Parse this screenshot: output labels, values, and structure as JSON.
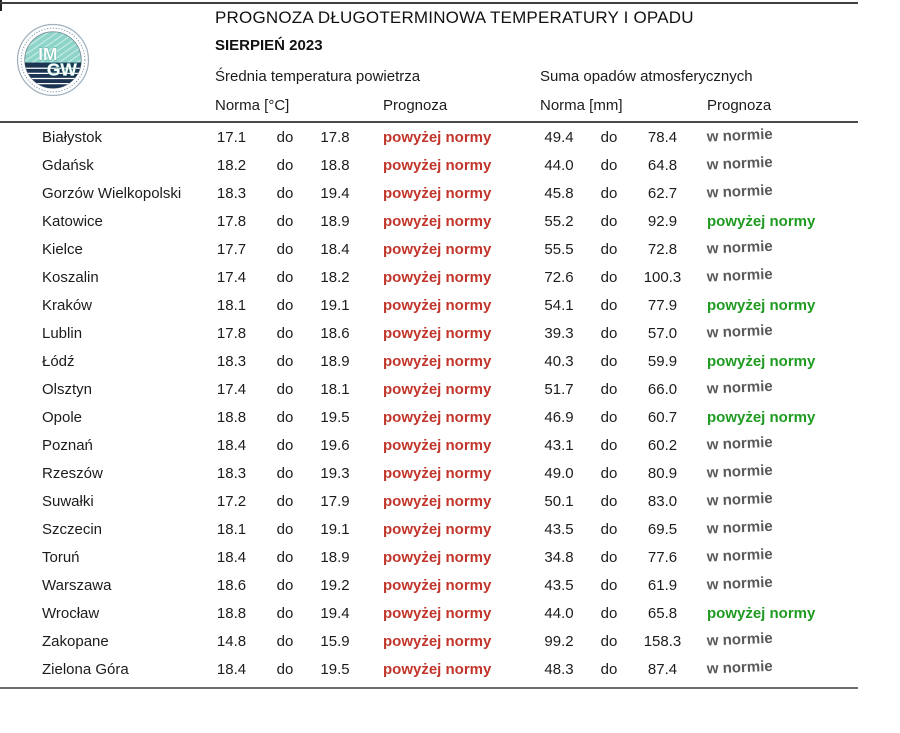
{
  "header": {
    "title": "PROGNOZA DŁUGOTERMINOWA TEMPERATURY I OPADU",
    "month": "SIERPIEŃ 2023",
    "logo": {
      "line1": "IM",
      "line2": "GW"
    }
  },
  "columns": {
    "temp_group": "Średnia temperatura powietrza",
    "precip_group": "Suma opadów atmosferycznych",
    "temp_norm": "Norma [°C]",
    "temp_forecast": "Prognoza",
    "precip_norm": "Norma [mm]",
    "precip_forecast": "Prognoza"
  },
  "labels": {
    "range_separator": "do",
    "above_norm": "powyżej normy",
    "in_norm": "w normie"
  },
  "colors": {
    "above_norm_temp": "#c2352b",
    "above_norm_precip": "#1e9b20",
    "in_norm": "#595959",
    "logo_teal": "#8ed4c9",
    "logo_navy": "#1c3452"
  },
  "table": {
    "rows": [
      {
        "city": "Białystok",
        "t_min": "17.1",
        "t_max": "17.8",
        "t_forecast": "powyżej normy",
        "t_status": "above",
        "p_min": "49.4",
        "p_max": "78.4",
        "p_forecast": "w normie",
        "p_status": "normal"
      },
      {
        "city": "Gdańsk",
        "t_min": "18.2",
        "t_max": "18.8",
        "t_forecast": "powyżej normy",
        "t_status": "above",
        "p_min": "44.0",
        "p_max": "64.8",
        "p_forecast": "w normie",
        "p_status": "normal"
      },
      {
        "city": "Gorzów Wielkopolski",
        "t_min": "18.3",
        "t_max": "19.4",
        "t_forecast": "powyżej normy",
        "t_status": "above",
        "p_min": "45.8",
        "p_max": "62.7",
        "p_forecast": "w normie",
        "p_status": "normal"
      },
      {
        "city": "Katowice",
        "t_min": "17.8",
        "t_max": "18.9",
        "t_forecast": "powyżej normy",
        "t_status": "above",
        "p_min": "55.2",
        "p_max": "92.9",
        "p_forecast": "powyżej normy",
        "p_status": "above"
      },
      {
        "city": "Kielce",
        "t_min": "17.7",
        "t_max": "18.4",
        "t_forecast": "powyżej normy",
        "t_status": "above",
        "p_min": "55.5",
        "p_max": "72.8",
        "p_forecast": "w normie",
        "p_status": "normal"
      },
      {
        "city": "Koszalin",
        "t_min": "17.4",
        "t_max": "18.2",
        "t_forecast": "powyżej normy",
        "t_status": "above",
        "p_min": "72.6",
        "p_max": "100.3",
        "p_forecast": "w normie",
        "p_status": "normal"
      },
      {
        "city": "Kraków",
        "t_min": "18.1",
        "t_max": "19.1",
        "t_forecast": "powyżej normy",
        "t_status": "above",
        "p_min": "54.1",
        "p_max": "77.9",
        "p_forecast": "powyżej normy",
        "p_status": "above"
      },
      {
        "city": "Lublin",
        "t_min": "17.8",
        "t_max": "18.6",
        "t_forecast": "powyżej normy",
        "t_status": "above",
        "p_min": "39.3",
        "p_max": "57.0",
        "p_forecast": "w normie",
        "p_status": "normal"
      },
      {
        "city": "Łódź",
        "t_min": "18.3",
        "t_max": "18.9",
        "t_forecast": "powyżej normy",
        "t_status": "above",
        "p_min": "40.3",
        "p_max": "59.9",
        "p_forecast": "powyżej normy",
        "p_status": "above"
      },
      {
        "city": "Olsztyn",
        "t_min": "17.4",
        "t_max": "18.1",
        "t_forecast": "powyżej normy",
        "t_status": "above",
        "p_min": "51.7",
        "p_max": "66.0",
        "p_forecast": "w normie",
        "p_status": "normal"
      },
      {
        "city": "Opole",
        "t_min": "18.8",
        "t_max": "19.5",
        "t_forecast": "powyżej normy",
        "t_status": "above",
        "p_min": "46.9",
        "p_max": "60.7",
        "p_forecast": "powyżej normy",
        "p_status": "above"
      },
      {
        "city": "Poznań",
        "t_min": "18.4",
        "t_max": "19.6",
        "t_forecast": "powyżej normy",
        "t_status": "above",
        "p_min": "43.1",
        "p_max": "60.2",
        "p_forecast": "w normie",
        "p_status": "normal"
      },
      {
        "city": "Rzeszów",
        "t_min": "18.3",
        "t_max": "19.3",
        "t_forecast": "powyżej normy",
        "t_status": "above",
        "p_min": "49.0",
        "p_max": "80.9",
        "p_forecast": "w normie",
        "p_status": "normal"
      },
      {
        "city": "Suwałki",
        "t_min": "17.2",
        "t_max": "17.9",
        "t_forecast": "powyżej normy",
        "t_status": "above",
        "p_min": "50.1",
        "p_max": "83.0",
        "p_forecast": "w normie",
        "p_status": "normal"
      },
      {
        "city": "Szczecin",
        "t_min": "18.1",
        "t_max": "19.1",
        "t_forecast": "powyżej normy",
        "t_status": "above",
        "p_min": "43.5",
        "p_max": "69.5",
        "p_forecast": "w normie",
        "p_status": "normal"
      },
      {
        "city": "Toruń",
        "t_min": "18.4",
        "t_max": "18.9",
        "t_forecast": "powyżej normy",
        "t_status": "above",
        "p_min": "34.8",
        "p_max": "77.6",
        "p_forecast": "w normie",
        "p_status": "normal"
      },
      {
        "city": "Warszawa",
        "t_min": "18.6",
        "t_max": "19.2",
        "t_forecast": "powyżej normy",
        "t_status": "above",
        "p_min": "43.5",
        "p_max": "61.9",
        "p_forecast": "w normie",
        "p_status": "normal"
      },
      {
        "city": "Wrocław",
        "t_min": "18.8",
        "t_max": "19.4",
        "t_forecast": "powyżej normy",
        "t_status": "above",
        "p_min": "44.0",
        "p_max": "65.8",
        "p_forecast": "powyżej normy",
        "p_status": "above"
      },
      {
        "city": "Zakopane",
        "t_min": "14.8",
        "t_max": "15.9",
        "t_forecast": "powyżej normy",
        "t_status": "above",
        "p_min": "99.2",
        "p_max": "158.3",
        "p_forecast": "w normie",
        "p_status": "normal"
      },
      {
        "city": "Zielona Góra",
        "t_min": "18.4",
        "t_max": "19.5",
        "t_forecast": "powyżej normy",
        "t_status": "above",
        "p_min": "48.3",
        "p_max": "87.4",
        "p_forecast": "w normie",
        "p_status": "normal"
      }
    ]
  }
}
